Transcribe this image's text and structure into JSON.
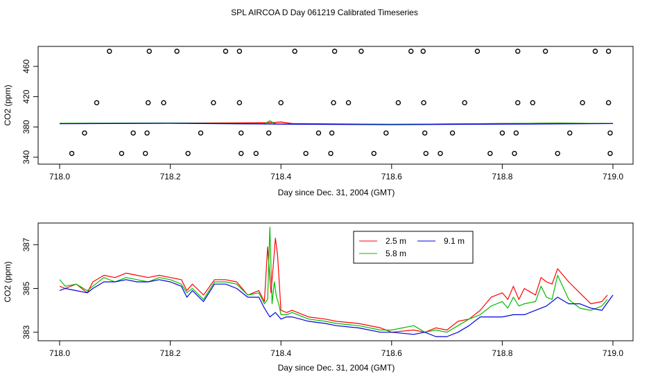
{
  "title": "SPL AIRCOA D  Day 061219  Calibrated Timeseries",
  "chart_data": [
    {
      "type": "scatter",
      "xlabel": "Day since Dec. 31, 2004 (GMT)",
      "ylabel": "CO2 (ppm)",
      "xlim": [
        718.0,
        719.0
      ],
      "ylim": [
        340,
        480
      ],
      "xticks": [
        "718.0",
        "718.2",
        "718.4",
        "718.6",
        "718.8",
        "719.0"
      ],
      "yticks": [
        "340",
        "380",
        "420",
        "460"
      ],
      "outlier_points": [
        {
          "x": 718.09,
          "y": 480
        },
        {
          "x": 718.162,
          "y": 480
        },
        {
          "x": 718.212,
          "y": 480
        },
        {
          "x": 718.3,
          "y": 480
        },
        {
          "x": 718.325,
          "y": 480
        },
        {
          "x": 718.425,
          "y": 480
        },
        {
          "x": 718.497,
          "y": 480
        },
        {
          "x": 718.545,
          "y": 480
        },
        {
          "x": 718.635,
          "y": 480
        },
        {
          "x": 718.657,
          "y": 480
        },
        {
          "x": 718.755,
          "y": 480
        },
        {
          "x": 718.828,
          "y": 480
        },
        {
          "x": 718.878,
          "y": 480
        },
        {
          "x": 718.968,
          "y": 480
        },
        {
          "x": 718.992,
          "y": 480
        },
        {
          "x": 718.067,
          "y": 412
        },
        {
          "x": 718.16,
          "y": 412
        },
        {
          "x": 718.188,
          "y": 412
        },
        {
          "x": 718.278,
          "y": 412
        },
        {
          "x": 718.325,
          "y": 412
        },
        {
          "x": 718.4,
          "y": 412
        },
        {
          "x": 718.495,
          "y": 412
        },
        {
          "x": 718.522,
          "y": 412
        },
        {
          "x": 718.612,
          "y": 412
        },
        {
          "x": 718.658,
          "y": 412
        },
        {
          "x": 718.732,
          "y": 412
        },
        {
          "x": 718.828,
          "y": 412
        },
        {
          "x": 718.855,
          "y": 412
        },
        {
          "x": 718.945,
          "y": 412
        },
        {
          "x": 718.992,
          "y": 412
        },
        {
          "x": 718.045,
          "y": 372
        },
        {
          "x": 718.133,
          "y": 372
        },
        {
          "x": 718.158,
          "y": 372
        },
        {
          "x": 718.255,
          "y": 372
        },
        {
          "x": 718.328,
          "y": 372
        },
        {
          "x": 718.378,
          "y": 372
        },
        {
          "x": 718.468,
          "y": 372
        },
        {
          "x": 718.492,
          "y": 372
        },
        {
          "x": 718.59,
          "y": 372
        },
        {
          "x": 718.66,
          "y": 372
        },
        {
          "x": 718.71,
          "y": 372
        },
        {
          "x": 718.8,
          "y": 372
        },
        {
          "x": 718.825,
          "y": 372
        },
        {
          "x": 718.922,
          "y": 372
        },
        {
          "x": 718.995,
          "y": 372
        },
        {
          "x": 718.022,
          "y": 345
        },
        {
          "x": 718.112,
          "y": 345
        },
        {
          "x": 718.155,
          "y": 345
        },
        {
          "x": 718.232,
          "y": 345
        },
        {
          "x": 718.328,
          "y": 345
        },
        {
          "x": 718.355,
          "y": 345
        },
        {
          "x": 718.445,
          "y": 345
        },
        {
          "x": 718.49,
          "y": 345
        },
        {
          "x": 718.568,
          "y": 345
        },
        {
          "x": 718.662,
          "y": 345
        },
        {
          "x": 718.688,
          "y": 345
        },
        {
          "x": 718.778,
          "y": 345
        },
        {
          "x": 718.822,
          "y": 345
        },
        {
          "x": 718.9,
          "y": 345
        },
        {
          "x": 718.995,
          "y": 345
        }
      ],
      "series": [
        {
          "name": "2.5 m",
          "color": "#ff0000",
          "x": [
            718.0,
            718.2,
            718.38,
            718.4,
            718.42,
            718.6,
            718.8,
            718.9,
            719.0
          ],
          "values": [
            384.5,
            385.0,
            385.5,
            386.5,
            384.5,
            383.5,
            384.5,
            385.0,
            384.5
          ]
        },
        {
          "name": "5.8 m",
          "color": "#00bb00",
          "x": [
            718.0,
            718.2,
            718.37,
            718.38,
            718.39,
            718.6,
            718.8,
            718.9,
            719.0
          ],
          "values": [
            384.8,
            385.2,
            384.0,
            388.0,
            384.0,
            383.5,
            384.5,
            385.0,
            384.5
          ]
        },
        {
          "name": "9.1 m",
          "color": "#0000dd",
          "x": [
            718.0,
            718.2,
            718.4,
            718.6,
            718.8,
            718.9,
            719.0
          ],
          "values": [
            384.3,
            384.8,
            383.7,
            383.0,
            383.7,
            384.0,
            384.5
          ]
        }
      ]
    },
    {
      "type": "line",
      "xlabel": "Day since Dec. 31, 2004 (GMT)",
      "ylabel": "CO2 (ppm)",
      "xlim": [
        718.0,
        719.0
      ],
      "ylim": [
        382.8,
        387.8
      ],
      "xticks": [
        "718.0",
        "718.2",
        "718.4",
        "718.6",
        "718.8",
        "719.0"
      ],
      "yticks": [
        "383",
        "385",
        "387"
      ],
      "legend": "top-center",
      "series": [
        {
          "name": "2.5 m",
          "color": "#ff0000",
          "x": [
            718.0,
            718.01,
            718.03,
            718.05,
            718.06,
            718.08,
            718.1,
            718.12,
            718.14,
            718.16,
            718.18,
            718.2,
            718.22,
            718.23,
            718.24,
            718.26,
            718.28,
            718.3,
            718.32,
            718.34,
            718.36,
            718.37,
            718.376,
            718.382,
            718.386,
            718.39,
            718.394,
            718.4,
            718.41,
            718.42,
            718.45,
            718.48,
            718.5,
            718.54,
            718.58,
            718.6,
            718.64,
            718.66,
            718.68,
            718.7,
            718.72,
            718.74,
            718.76,
            718.78,
            718.8,
            718.81,
            718.82,
            718.83,
            718.84,
            718.86,
            718.87,
            718.88,
            718.89,
            718.9,
            718.92,
            718.94,
            718.96,
            718.98,
            718.99
          ],
          "values": [
            385.1,
            385.0,
            385.2,
            384.8,
            385.3,
            385.6,
            385.5,
            385.7,
            385.6,
            385.5,
            385.6,
            385.5,
            385.4,
            384.9,
            385.2,
            384.7,
            385.4,
            385.4,
            385.3,
            384.7,
            384.9,
            384.4,
            386.9,
            384.8,
            386.0,
            387.3,
            386.5,
            384.0,
            383.9,
            384.0,
            383.7,
            383.6,
            383.5,
            383.4,
            383.2,
            383.0,
            383.1,
            383.0,
            383.2,
            383.1,
            383.5,
            383.6,
            384.0,
            384.6,
            384.8,
            384.5,
            385.1,
            384.5,
            385.0,
            384.7,
            385.5,
            385.3,
            385.2,
            385.9,
            385.3,
            384.8,
            384.3,
            384.4,
            384.7
          ]
        },
        {
          "name": "5.8 m",
          "color": "#00bb00",
          "x": [
            718.0,
            718.01,
            718.03,
            718.05,
            718.06,
            718.08,
            718.1,
            718.12,
            718.14,
            718.16,
            718.18,
            718.2,
            718.22,
            718.23,
            718.24,
            718.26,
            718.28,
            718.3,
            718.32,
            718.34,
            718.36,
            718.37,
            718.376,
            718.38,
            718.384,
            718.388,
            718.392,
            718.396,
            718.4,
            718.41,
            718.42,
            718.45,
            718.48,
            718.5,
            718.54,
            718.58,
            718.6,
            718.64,
            718.66,
            718.68,
            718.7,
            718.72,
            718.74,
            718.76,
            718.78,
            718.8,
            718.81,
            718.82,
            718.83,
            718.84,
            718.86,
            718.87,
            718.88,
            718.89,
            718.9,
            718.92,
            718.94,
            718.96,
            718.98,
            718.99
          ],
          "values": [
            385.4,
            385.1,
            385.2,
            384.9,
            385.1,
            385.5,
            385.3,
            385.5,
            385.4,
            385.3,
            385.5,
            385.4,
            385.2,
            384.8,
            385.0,
            384.5,
            385.3,
            385.3,
            385.2,
            384.7,
            384.8,
            384.3,
            384.5,
            387.8,
            384.3,
            385.3,
            384.6,
            384.3,
            383.8,
            383.8,
            383.9,
            383.6,
            383.5,
            383.4,
            383.3,
            383.1,
            383.1,
            383.3,
            383.0,
            383.1,
            383.0,
            383.3,
            383.6,
            383.8,
            384.2,
            384.4,
            384.1,
            384.6,
            384.2,
            384.3,
            384.4,
            385.1,
            384.6,
            384.5,
            385.6,
            384.5,
            384.1,
            384.0,
            384.2,
            384.5
          ]
        },
        {
          "name": "9.1 m",
          "color": "#0000dd",
          "x": [
            718.0,
            718.01,
            718.03,
            718.05,
            718.06,
            718.08,
            718.1,
            718.12,
            718.14,
            718.16,
            718.18,
            718.2,
            718.22,
            718.23,
            718.24,
            718.26,
            718.28,
            718.3,
            718.32,
            718.34,
            718.36,
            718.37,
            718.38,
            718.39,
            718.4,
            718.41,
            718.42,
            718.45,
            718.48,
            718.5,
            718.54,
            718.58,
            718.6,
            718.64,
            718.66,
            718.68,
            718.7,
            718.72,
            718.74,
            718.76,
            718.78,
            718.8,
            718.82,
            718.84,
            718.86,
            718.88,
            718.9,
            718.92,
            718.94,
            718.96,
            718.98,
            719.0
          ],
          "values": [
            384.9,
            385.0,
            384.9,
            384.8,
            385.0,
            385.3,
            385.3,
            385.4,
            385.3,
            385.3,
            385.4,
            385.3,
            385.1,
            384.6,
            384.9,
            384.4,
            385.2,
            385.2,
            385.0,
            384.6,
            384.6,
            384.1,
            383.7,
            383.9,
            383.6,
            383.7,
            383.7,
            383.5,
            383.4,
            383.3,
            383.2,
            383.0,
            383.0,
            382.9,
            383.0,
            382.8,
            382.8,
            383.0,
            383.3,
            383.7,
            383.7,
            383.7,
            383.8,
            383.8,
            384.0,
            384.2,
            384.6,
            384.3,
            384.3,
            384.1,
            384.0,
            384.7
          ]
        }
      ]
    }
  ]
}
